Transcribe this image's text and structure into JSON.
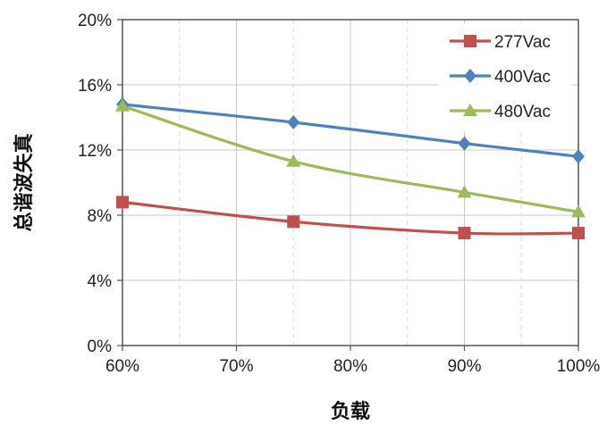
{
  "chart_data": {
    "type": "line",
    "x": [
      60,
      75,
      90,
      100
    ],
    "x_ticks": [
      "60%",
      "70%",
      "80%",
      "90%",
      "100%"
    ],
    "y_ticks": [
      "0%",
      "4%",
      "8%",
      "12%",
      "16%",
      "20%"
    ],
    "xlim": [
      60,
      100
    ],
    "ylim": [
      0,
      20
    ],
    "xlabel": "负载",
    "ylabel": "总谐波失真",
    "grid": true,
    "legend_position": "top-right",
    "series": [
      {
        "name": "277Vac",
        "marker": "square",
        "color": "#c0504d",
        "values": [
          8.8,
          7.6,
          6.9,
          6.9
        ]
      },
      {
        "name": "400Vac",
        "marker": "diamond",
        "color": "#4f81bd",
        "values": [
          14.8,
          13.7,
          12.4,
          11.6
        ]
      },
      {
        "name": "480Vac",
        "marker": "triangle",
        "color": "#9bbb59",
        "values": [
          14.7,
          11.3,
          9.4,
          8.2
        ]
      }
    ]
  }
}
